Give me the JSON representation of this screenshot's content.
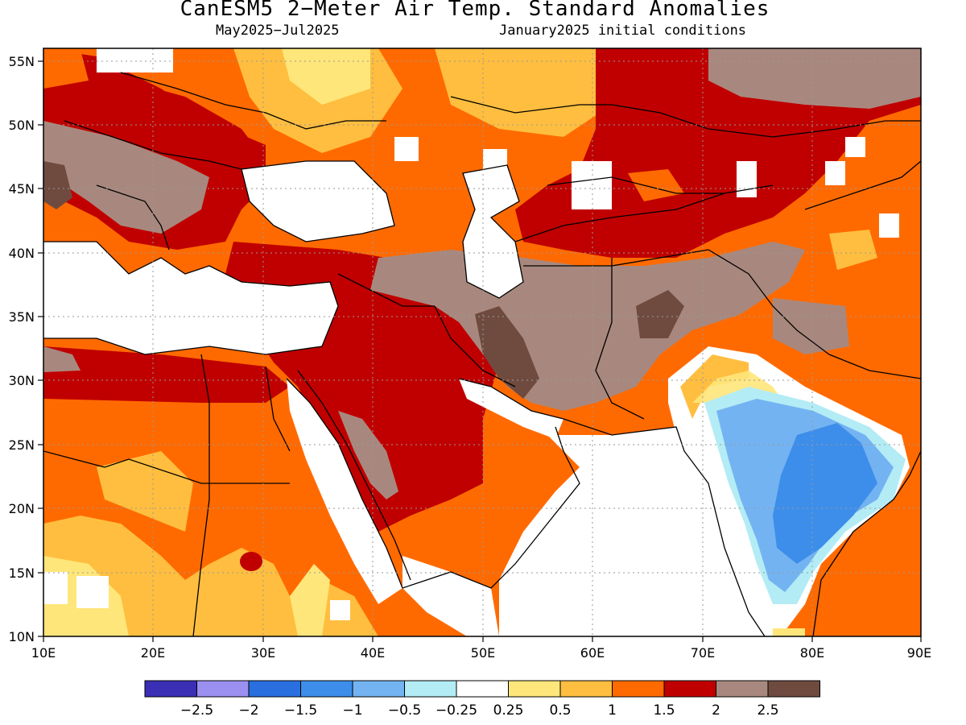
{
  "title": "CanESM5 2−Meter Air Temp. Standard Anomalies",
  "subtitle_left": "May2025−Jul2025",
  "subtitle_right": "January2025 initial conditions",
  "map": {
    "lon_range": [
      10,
      90
    ],
    "lat_range": [
      10,
      56
    ],
    "x_ticks": [
      "10E",
      "20E",
      "30E",
      "40E",
      "50E",
      "60E",
      "70E",
      "80E",
      "90E"
    ],
    "y_ticks": [
      "10N",
      "15N",
      "20N",
      "25N",
      "30N",
      "35N",
      "40N",
      "45N",
      "50N",
      "55N"
    ],
    "grid": "dotted"
  },
  "colorbar": {
    "colors": [
      "#3a2fb5",
      "#9b8ff0",
      "#2a6fe0",
      "#3d8eea",
      "#74b3f2",
      "#b3ecf5",
      "#ffffff",
      "#ffe67a",
      "#ffbe3f",
      "#ff6a00",
      "#c00000",
      "#a8887e",
      "#6f4b3f"
    ],
    "labels": [
      "−2.5",
      "−2",
      "−1.5",
      "−1",
      "−0.5",
      "−0.25",
      "0.25",
      "0.5",
      "1",
      "1.5",
      "2",
      "2.5"
    ]
  }
}
